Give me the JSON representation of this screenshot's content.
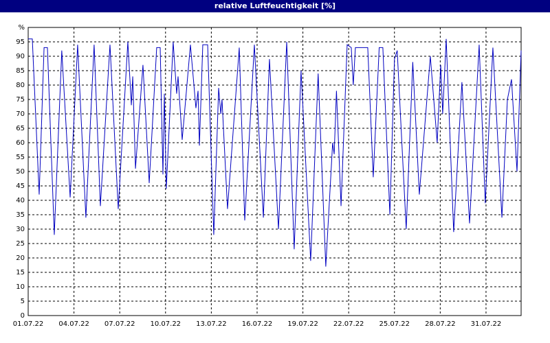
{
  "chart_data": {
    "type": "line",
    "title": "relative Luftfeuchtigkeit [%]",
    "color": "#0000c0",
    "grid": true,
    "xlim": [
      0,
      32.3
    ],
    "ylim": [
      0,
      100
    ],
    "xticks": [
      {
        "value": 0,
        "label": "01.07.22"
      },
      {
        "value": 3,
        "label": "04.07.22"
      },
      {
        "value": 6,
        "label": "07.07.22"
      },
      {
        "value": 9,
        "label": "10.07.22"
      },
      {
        "value": 12,
        "label": "13.07.22"
      },
      {
        "value": 15,
        "label": "16.07.22"
      },
      {
        "value": 18,
        "label": "19.07.22"
      },
      {
        "value": 21,
        "label": "22.07.22"
      },
      {
        "value": 24,
        "label": "25.07.22"
      },
      {
        "value": 27,
        "label": "28.07.22"
      },
      {
        "value": 30,
        "label": "31.07.22"
      }
    ],
    "yticks": [
      0,
      5,
      10,
      15,
      20,
      25,
      30,
      35,
      40,
      45,
      50,
      55,
      60,
      65,
      70,
      75,
      80,
      85,
      90,
      95,
      {
        "value": 100,
        "label": "%"
      }
    ],
    "x": [
      0,
      0.27,
      0.72,
      1.04,
      1.26,
      1.71,
      2.2,
      2.75,
      3.24,
      3.78,
      4.32,
      4.73,
      5.36,
      5.9,
      6.53,
      6.76,
      6.85,
      7.03,
      7.52,
      7.93,
      8.42,
      8.65,
      8.83,
      8.92,
      9.05,
      9.5,
      9.73,
      9.82,
      10.09,
      10.63,
      10.99,
      11.13,
      11.22,
      11.44,
      11.76,
      12.16,
      12.48,
      12.62,
      12.7,
      13.06,
      13.83,
      14.19,
      14.82,
      15.41,
      15.81,
      16.4,
      16.94,
      17.43,
      17.88,
      18.51,
      19.0,
      19.5,
      19.95,
      20.05,
      20.2,
      20.5,
      20.9,
      21.17,
      21.3,
      21.44,
      22.25,
      22.61,
      23.0,
      23.24,
      23.7,
      24.0,
      24.18,
      24.77,
      25.2,
      25.63,
      26.35,
      26.8,
      27.03,
      27.16,
      27.39,
      27.88,
      28.42,
      28.92,
      29.55,
      29.95,
      30.45,
      31.04,
      31.4,
      31.67,
      32.03,
      32.3
    ],
    "values": [
      96,
      96,
      42,
      93,
      93,
      28,
      92,
      41,
      94,
      34,
      94,
      38,
      94,
      37,
      95,
      73,
      83,
      51,
      87,
      46,
      93,
      93,
      49,
      77,
      44,
      95,
      77,
      83,
      61,
      94,
      72,
      78,
      59,
      94,
      94,
      28,
      79,
      70,
      75,
      37,
      93,
      33,
      94,
      34,
      89,
      30,
      95,
      23,
      85,
      19,
      84,
      17,
      60,
      56,
      78,
      38,
      94,
      93,
      80,
      93,
      93,
      48,
      93,
      93,
      35,
      89,
      92,
      30,
      88,
      42,
      90,
      60,
      87,
      70,
      96,
      29,
      81,
      32,
      94,
      39,
      93,
      34,
      75,
      82,
      50,
      92
    ]
  }
}
